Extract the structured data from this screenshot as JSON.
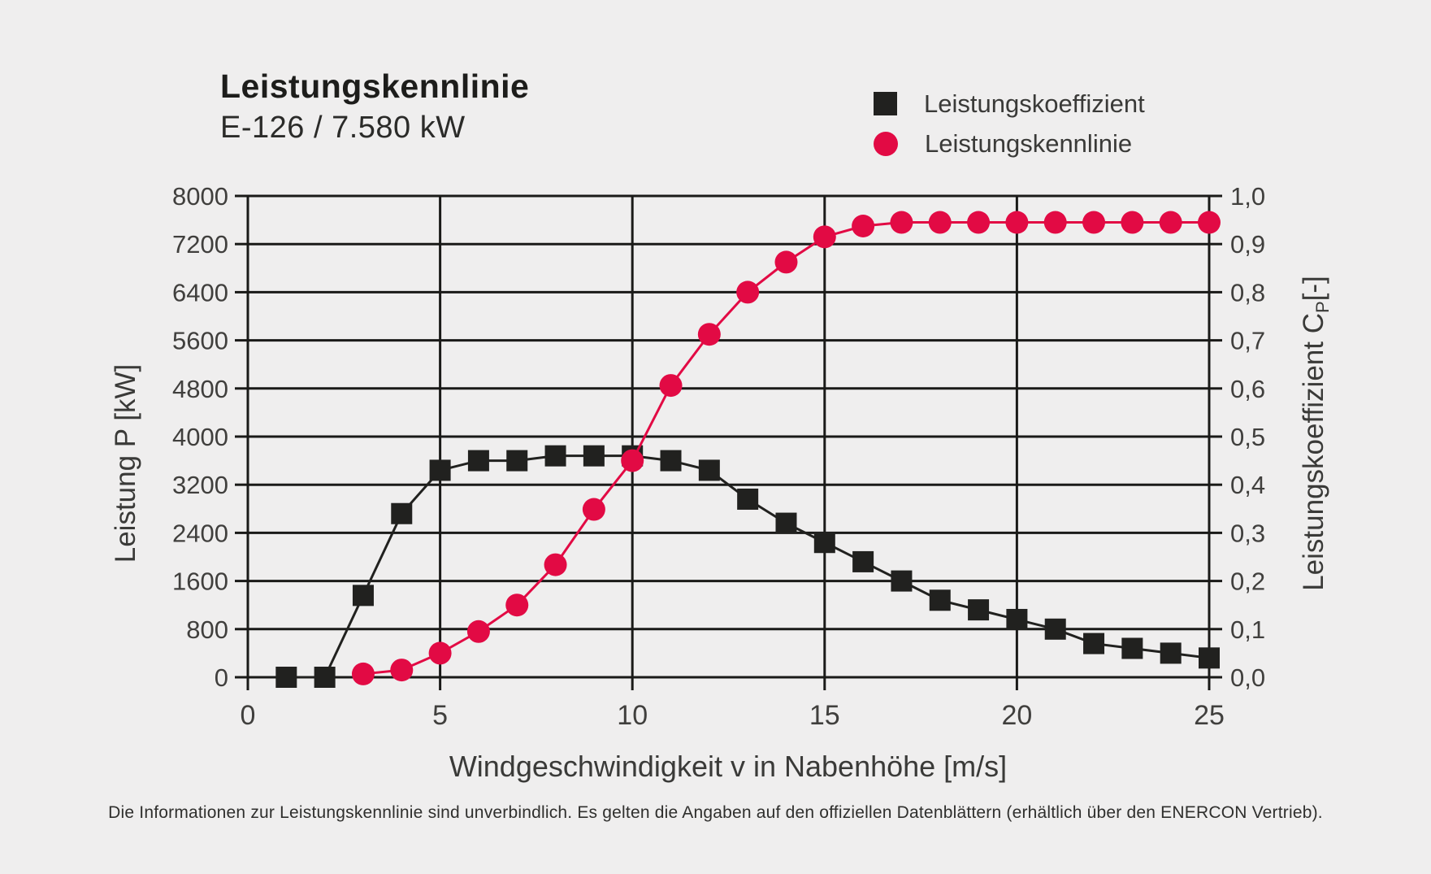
{
  "page": {
    "background": "#efeeee"
  },
  "header": {
    "title": "Leistungskennlinie",
    "subtitle": "E-126 / 7.580 kW"
  },
  "legend": [
    {
      "label": "Leistungskoeffizient",
      "marker": "square",
      "color": "#21211f"
    },
    {
      "label": "Leistungskennlinie",
      "marker": "circle",
      "color": "#e20a44"
    }
  ],
  "footer": {
    "note": "Die Informationen zur Leistungskennlinie sind unverbindlich. Es gelten die Angaben auf den offiziellen Datenblättern (erhältlich über den ENERCON Vertrieb)."
  },
  "chart_data": {
    "type": "line",
    "title": "Leistungskennlinie E-126 / 7.580 kW",
    "xlabel": "Windgeschwindigkeit v in Nabenhöhe [m/s]",
    "ylabel_left": "Leistung P [kW]",
    "ylabel_right": {
      "prefix": "Leistungskoeffizient C",
      "sub": "P",
      "suffix": "[-]"
    },
    "grid": true,
    "grid_color": "#1a1a18",
    "legend_position": "top-right",
    "x_axis": {
      "min": 0,
      "max": 25,
      "tick_step": 5,
      "tick_labels": [
        "0",
        "5",
        "10",
        "15",
        "20",
        "25"
      ]
    },
    "y_left": {
      "min": 0,
      "max": 8000,
      "tick_step": 800,
      "tick_labels": [
        "0",
        "800",
        "1600",
        "2400",
        "3200",
        "4000",
        "4800",
        "5600",
        "6400",
        "7200",
        "8000"
      ]
    },
    "y_right": {
      "min": 0,
      "max": 1,
      "tick_step": 0.1,
      "tick_labels": [
        "0,0",
        "0,1",
        "0,2",
        "0,3",
        "0,4",
        "0,5",
        "0,6",
        "0,7",
        "0,8",
        "0,9",
        "1,0"
      ]
    },
    "series": [
      {
        "name": "Leistungskoeffizient",
        "axis": "right",
        "marker": "square",
        "color": "#21211f",
        "x": [
          1,
          2,
          3,
          4,
          5,
          6,
          7,
          8,
          9,
          10,
          11,
          12,
          13,
          14,
          15,
          16,
          17,
          18,
          19,
          20,
          21,
          22,
          23,
          24,
          25
        ],
        "values": [
          0.0,
          0.0,
          0.17,
          0.34,
          0.43,
          0.45,
          0.45,
          0.46,
          0.46,
          0.46,
          0.45,
          0.43,
          0.37,
          0.32,
          0.28,
          0.24,
          0.2,
          0.16,
          0.14,
          0.12,
          0.1,
          0.07,
          0.06,
          0.05,
          0.04
        ]
      },
      {
        "name": "Leistungskennlinie",
        "axis": "left",
        "marker": "circle",
        "color": "#e20a44",
        "x": [
          3,
          4,
          5,
          6,
          7,
          8,
          9,
          10,
          11,
          12,
          13,
          14,
          15,
          16,
          17,
          18,
          19,
          20,
          21,
          22,
          23,
          24,
          25
        ],
        "values": [
          55,
          120,
          400,
          760,
          1200,
          1870,
          2790,
          3600,
          4850,
          5700,
          6400,
          6900,
          7320,
          7500,
          7560,
          7560,
          7560,
          7560,
          7560,
          7560,
          7560,
          7560,
          7560
        ]
      }
    ]
  }
}
